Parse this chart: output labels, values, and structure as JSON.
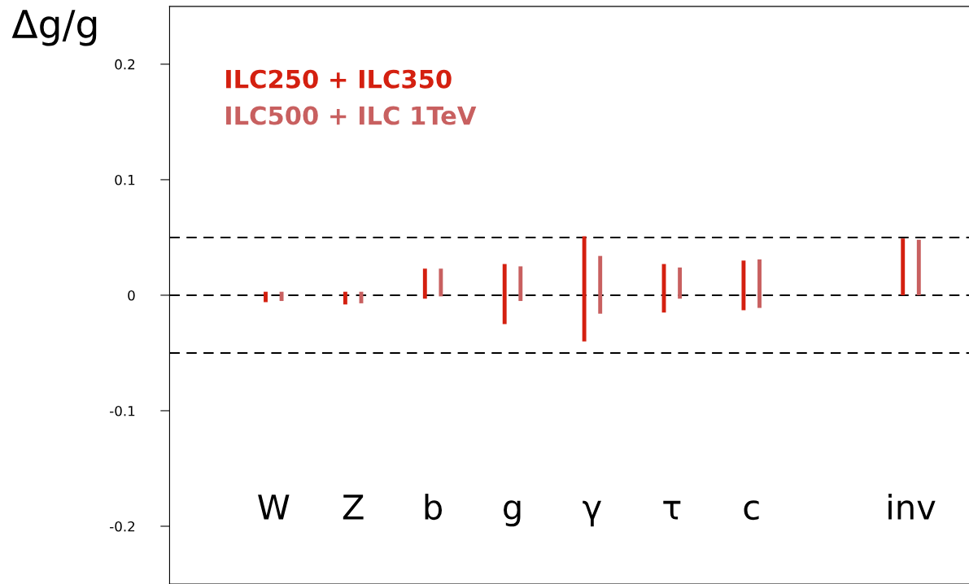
{
  "chart_data": {
    "type": "bar",
    "ylabel": "Δg/g",
    "categories": [
      "W",
      "Z",
      "b",
      "g",
      "γ",
      "τ",
      "c",
      null,
      "inv"
    ],
    "series": [
      {
        "name": "ILC250 + ILC350",
        "color": "#d42010",
        "base": [
          -0.006,
          -0.008,
          -0.003,
          -0.025,
          -0.04,
          -0.015,
          -0.013,
          null,
          0
        ],
        "values": [
          0.009,
          0.011,
          0.026,
          0.052,
          0.091,
          0.042,
          0.043,
          null,
          0.049
        ]
      },
      {
        "name": "ILC500 + ILC 1TeV",
        "color": "#c86060",
        "base": [
          -0.005,
          -0.007,
          -0.001,
          -0.005,
          -0.016,
          -0.003,
          -0.011,
          null,
          0
        ],
        "values": [
          0.008,
          0.01,
          0.024,
          0.03,
          0.05,
          0.027,
          0.042,
          null,
          0.048
        ]
      }
    ],
    "ylim": [
      -0.25,
      0.25
    ],
    "yticks": [
      0.2,
      0.1,
      0,
      -0.1,
      -0.2
    ],
    "ref_lines": [
      {
        "axis": "y",
        "value": 0.05,
        "color": "#000000",
        "line_style": "dashed"
      },
      {
        "axis": "y",
        "value": 0,
        "color": "#000000",
        "line_style": "dashed"
      },
      {
        "axis": "y",
        "value": -0.05,
        "color": "#000000",
        "line_style": "dashed"
      }
    ],
    "grid": false,
    "legend": "top left"
  }
}
